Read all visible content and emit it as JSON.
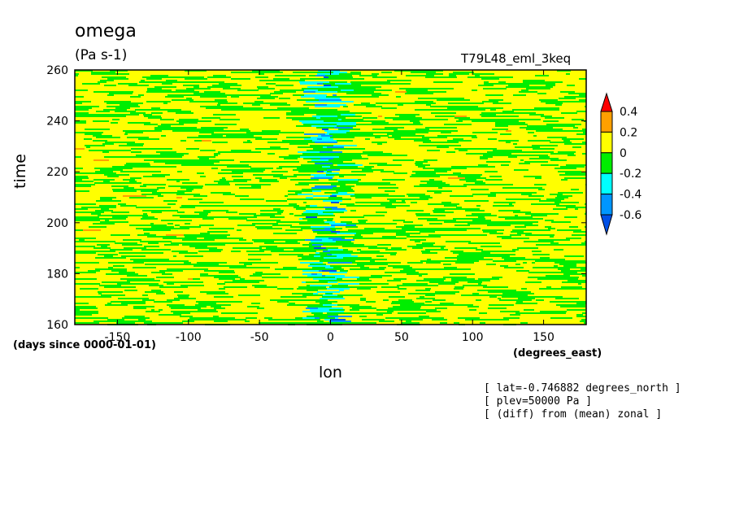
{
  "chart_data": {
    "type": "heatmap",
    "title": "omega",
    "units": "(Pa s-1)",
    "run_name": "T79L48_eml_3keq",
    "xlabel": "lon",
    "ylabel": "time",
    "x_units": "(degrees_east)",
    "y_units": "(days since 0000-01-01)",
    "xlim": [
      -180,
      180
    ],
    "ylim": [
      160,
      260
    ],
    "x_ticks": [
      "-150",
      "-100",
      "-50",
      "0",
      "50",
      "100",
      "150"
    ],
    "x_tick_values": [
      -150,
      -100,
      -50,
      0,
      50,
      100,
      150
    ],
    "y_ticks": [
      "160",
      "180",
      "200",
      "220",
      "240",
      "260"
    ],
    "y_tick_values": [
      160,
      180,
      200,
      220,
      240,
      260
    ],
    "colorbar": {
      "labels": [
        "0.4",
        "0.2",
        "0",
        "-0.2",
        "-0.4",
        "-0.6"
      ],
      "levels": [
        0.4,
        0.2,
        0,
        -0.2,
        -0.4,
        -0.6
      ],
      "colors": [
        "#ff0000",
        "#ffa000",
        "#ffff00",
        "#00ee00",
        "#00ffff",
        "#0096ff",
        "#0050e6"
      ],
      "extend": "both"
    },
    "notes": [
      "[ lat=-0.746882 degrees_north ]",
      "[ plev=50000 Pa ]",
      "[ (diff) from (mean) zonal ]"
    ]
  }
}
